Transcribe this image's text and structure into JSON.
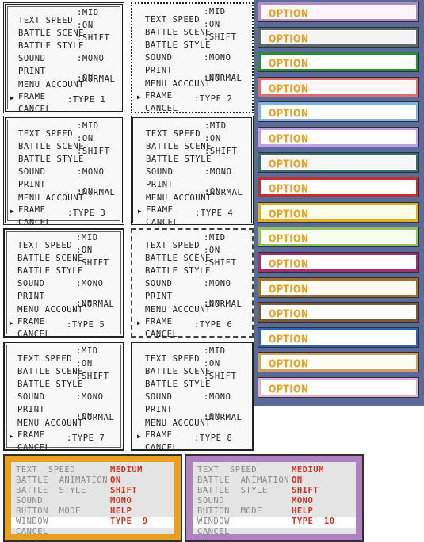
{
  "panel_labels": {
    "text_speed": "TEXT SPEED",
    "mid": ":MID",
    "battle_scene": "BATTLE SCENE",
    "on": ":ON",
    "battle_style": "BATTLE STYLE",
    "shift": ":SHIFT",
    "sound": "SOUND",
    "mono": ":MONO",
    "print": "PRINT",
    "normal": ":NORMAL",
    "menu_account": "MENU ACCOUNT",
    "frame": "FRAME",
    "cancel": "CANCEL",
    "cursor": "▶"
  },
  "frame_types": [
    ":TYPE 1",
    ":TYPE 2",
    ":TYPE 3",
    ":TYPE 4",
    ":TYPE 5",
    ":TYPE 6",
    ":TYPE 7",
    ":TYPE 8"
  ],
  "option_label": "OPTION",
  "option_frames": [
    {
      "border": "#b08ac0",
      "fill": "#fff4fa"
    },
    {
      "border": "#5a6a6a",
      "fill": "#f4f4f4"
    },
    {
      "border": "#2a8a3a",
      "fill": "#ffffff"
    },
    {
      "border": "#d87070",
      "fill": "#fff6f6"
    },
    {
      "border": "#80b0e0",
      "fill": "#ffffff"
    },
    {
      "border": "#c0a0e0",
      "fill": "#ffffff"
    },
    {
      "border": "#3a6a6a",
      "fill": "#f6f6f6"
    },
    {
      "border": "#c03030",
      "fill": "#ffffff"
    },
    {
      "border": "#e0b020",
      "fill": "#fffce8"
    },
    {
      "border": "#90c060",
      "fill": "#f8fff0"
    },
    {
      "border": "#a03070",
      "fill": "#ffffff"
    },
    {
      "border": "#a07030",
      "fill": "#fffaf0"
    },
    {
      "border": "#7a5a3a",
      "fill": "#ffffff"
    },
    {
      "border": "#3060b0",
      "fill": "#ffffff"
    },
    {
      "border": "#d0a060",
      "fill": "#fffcf4"
    },
    {
      "border": "#e0b0d0",
      "fill": "#ffffff"
    }
  ],
  "gbc_labels": {
    "text_speed": "TEXT  SPEED",
    "battle_animation": "BATTLE  ANIMATION",
    "battle_style": "BATTLE  STYLE",
    "sound": "SOUND",
    "button_mode": "BUTTON  MODE",
    "window": "WINDOW",
    "cancel": "CANCEL"
  },
  "gbc_values": {
    "medium": "MEDIUM",
    "on": "ON",
    "shift": "SHIFT",
    "mono": "MONO",
    "help": "HELP"
  },
  "gbc_panels": [
    {
      "window_type": "TYPE  9",
      "border": "#e8a020"
    },
    {
      "window_type": "TYPE  10",
      "border": "#b080c0"
    }
  ],
  "colors": {
    "option_text": "#e8a020",
    "value_red": "#d83020",
    "label_gray": "#8a8a8a"
  }
}
